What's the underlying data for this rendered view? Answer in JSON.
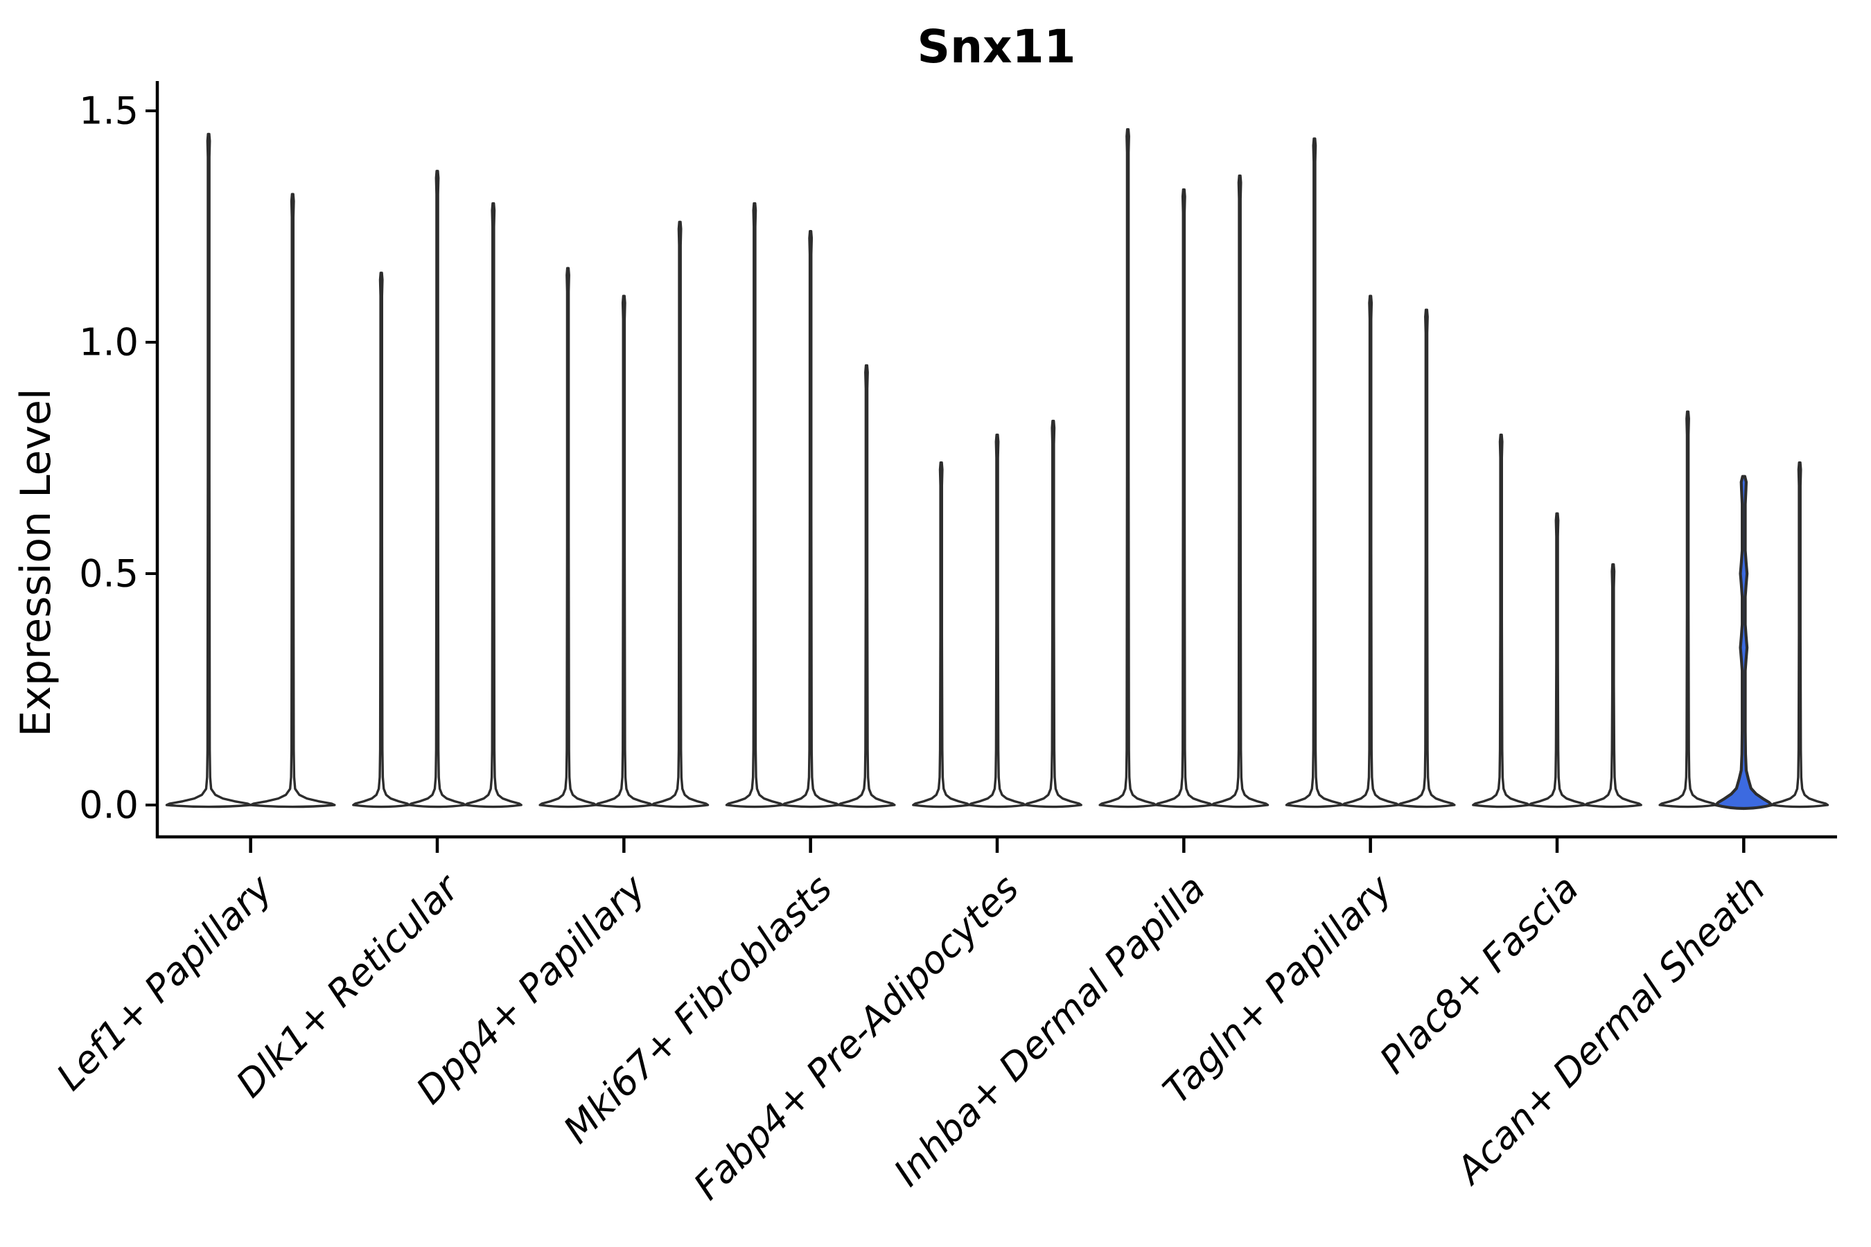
{
  "chart_data": {
    "type": "violin",
    "title": "Snx11",
    "ylabel": "Expression Level",
    "xlabel": "",
    "ylim": [
      0,
      1.5
    ],
    "yticks": [
      0,
      0.5,
      1.0,
      1.5
    ],
    "ytick_labels": [
      "0.0",
      "0.5",
      "1.0",
      "1.5"
    ],
    "grid": false,
    "legend": "none",
    "x_tick_label_style": "italic, rotated 45deg, right-anchored",
    "categories": [
      "Lef1+ Papillary",
      "Dlk1+ Reticular",
      "Dpp4+ Papillary",
      "Mki67+ Fibroblasts",
      "Fabp4+ Pre-Adipocytes",
      "Inhba+ Dermal Papilla",
      "Tagln+ Papillary",
      "Plac8+ Fascia",
      "Acan+ Dermal Sheath"
    ],
    "groups": [
      {
        "category": "Lef1+ Papillary",
        "violins": [
          {
            "max": 1.45
          },
          {
            "max": 1.32
          }
        ]
      },
      {
        "category": "Dlk1+ Reticular",
        "violins": [
          {
            "max": 1.15
          },
          {
            "max": 1.37
          },
          {
            "max": 1.3
          }
        ]
      },
      {
        "category": "Dpp4+ Papillary",
        "violins": [
          {
            "max": 1.16
          },
          {
            "max": 1.1
          },
          {
            "max": 1.26
          }
        ]
      },
      {
        "category": "Mki67+ Fibroblasts",
        "violins": [
          {
            "max": 1.3
          },
          {
            "max": 1.24
          },
          {
            "max": 0.95
          }
        ]
      },
      {
        "category": "Fabp4+ Pre-Adipocytes",
        "violins": [
          {
            "max": 0.74
          },
          {
            "max": 0.8
          },
          {
            "max": 0.83
          }
        ]
      },
      {
        "category": "Inhba+ Dermal Papilla",
        "violins": [
          {
            "max": 1.46
          },
          {
            "max": 1.33
          },
          {
            "max": 1.36
          }
        ]
      },
      {
        "category": "Tagln+ Papillary",
        "violins": [
          {
            "max": 1.44
          },
          {
            "max": 1.1
          },
          {
            "max": 1.07
          }
        ]
      },
      {
        "category": "Plac8+ Fascia",
        "violins": [
          {
            "max": 0.8
          },
          {
            "max": 0.63
          },
          {
            "max": 0.52
          }
        ]
      },
      {
        "category": "Acan+ Dermal Sheath",
        "violins": [
          {
            "max": 0.85
          },
          {
            "max": 0.71,
            "highlighted": true,
            "bulges": [
              0.34,
              0.5
            ],
            "base_height": 0.057
          },
          {
            "max": 0.74
          }
        ]
      }
    ],
    "colors": {
      "violin_outline": "#2D2D2D",
      "violin_fill_default": "#ffffff",
      "violin_fill_highlight": "#3C6AE0",
      "axis": "#000000",
      "background": "#ffffff"
    }
  }
}
